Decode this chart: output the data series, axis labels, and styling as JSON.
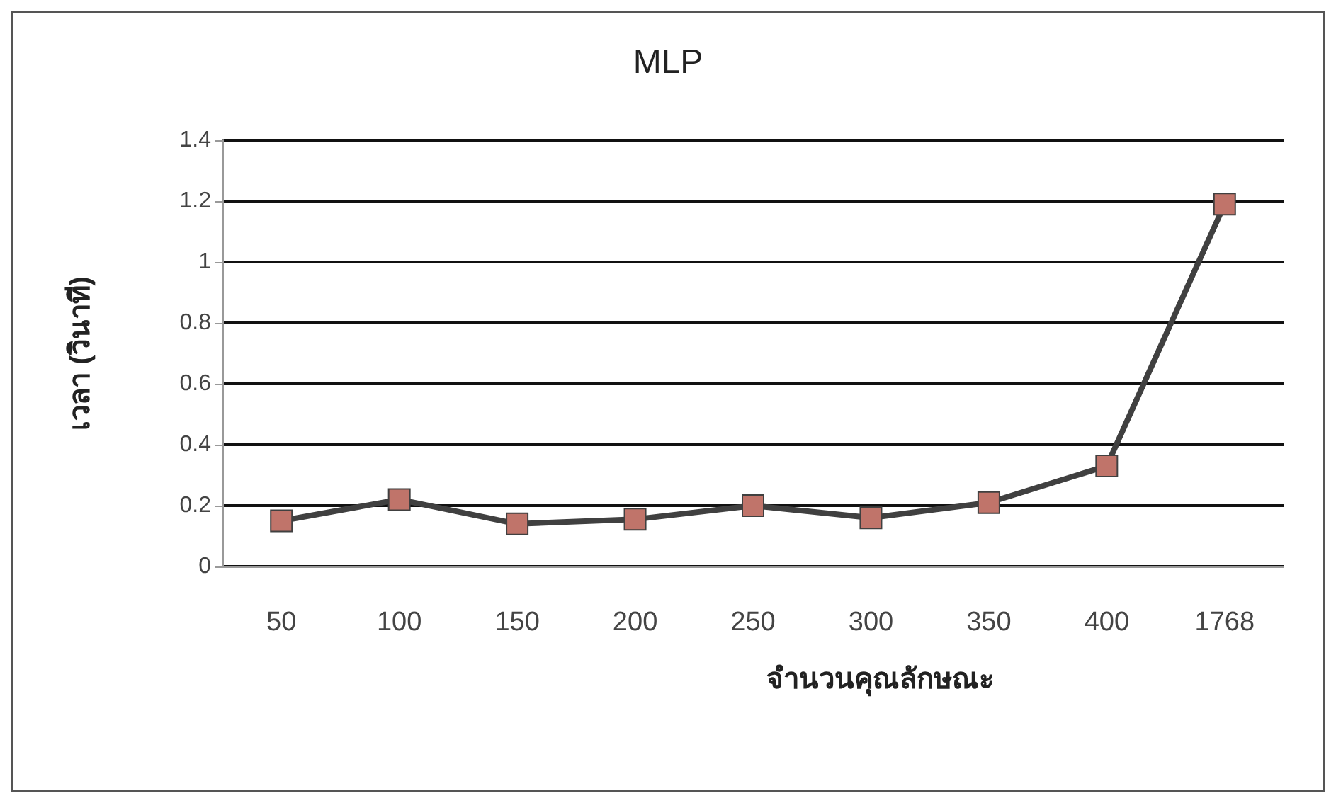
{
  "chart_data": {
    "type": "line",
    "title": "MLP",
    "xlabel": "จำนวนคุณลักษณะ",
    "ylabel": "เวลา (วินาที)",
    "categories": [
      "50",
      "100",
      "150",
      "200",
      "250",
      "300",
      "350",
      "400",
      "1768"
    ],
    "series": [
      {
        "color": "#404040",
        "values": [
          0.15,
          0.22,
          0.14,
          0.155,
          0.2,
          0.16,
          0.21,
          0.33,
          1.19
        ]
      }
    ],
    "ylim": [
      0,
      1.4
    ],
    "yticks": [
      0,
      0.2,
      0.4,
      0.6,
      0.8,
      1,
      1.2,
      1.4
    ],
    "grid": "y",
    "marker": "square"
  }
}
